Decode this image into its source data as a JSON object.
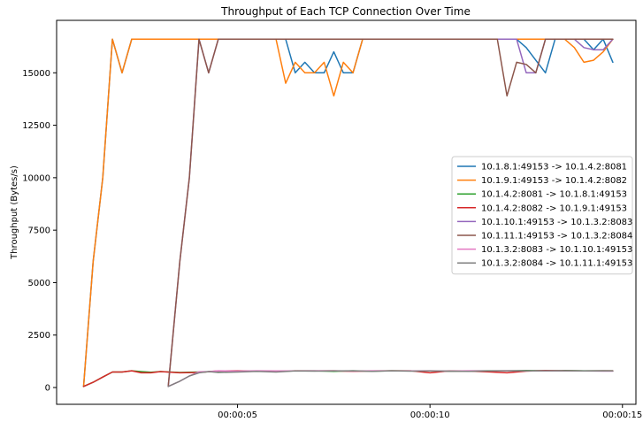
{
  "chart_data": {
    "type": "line",
    "title": "Throughput of Each TCP Connection Over Time",
    "xlabel": "",
    "ylabel": "Throughput (Bytes/s)",
    "xlim": [
      0.3,
      15.35
    ],
    "ylim": [
      -800,
      17500
    ],
    "x_ticks": [
      {
        "value": 5,
        "label": "00:00:05"
      },
      {
        "value": 10,
        "label": "00:00:10"
      },
      {
        "value": 15,
        "label": "00:00:15"
      }
    ],
    "y_ticks": [
      {
        "value": 0,
        "label": "0"
      },
      {
        "value": 2500,
        "label": "2500"
      },
      {
        "value": 5000,
        "label": "5000"
      },
      {
        "value": 7500,
        "label": "7500"
      },
      {
        "value": 10000,
        "label": "10000"
      },
      {
        "value": 12500,
        "label": "12500"
      },
      {
        "value": 15000,
        "label": "15000"
      }
    ],
    "grid": false,
    "legend_position": "center-right",
    "series": [
      {
        "name": "10.1.8.1:49153 -> 10.1.4.2:8081",
        "color": "#1f77b4",
        "x": [
          1.0,
          1.25,
          1.5,
          1.75,
          2.0,
          2.25,
          2.5,
          3.0,
          3.5,
          4.0,
          4.5,
          5.0,
          5.5,
          6.0,
          6.25,
          6.5,
          6.75,
          7.0,
          7.25,
          7.5,
          7.75,
          8.0,
          8.25,
          8.5,
          9.0,
          10.0,
          11.0,
          11.75,
          12.0,
          12.25,
          12.5,
          12.75,
          13.0,
          13.25,
          13.5,
          13.75,
          14.0,
          14.25,
          14.5,
          14.75
        ],
        "y": [
          50,
          6000,
          10000,
          16600,
          15000,
          16600,
          16600,
          16600,
          16600,
          16600,
          16600,
          16600,
          16600,
          16600,
          16600,
          15000,
          15500,
          15000,
          15000,
          16000,
          15000,
          15000,
          16600,
          16600,
          16600,
          16600,
          16600,
          16600,
          16600,
          16600,
          16200,
          15600,
          15000,
          16600,
          16600,
          16600,
          16600,
          16100,
          16600,
          15500
        ]
      },
      {
        "name": "10.1.9.1:49153 -> 10.1.4.2:8082",
        "color": "#ff7f0e",
        "x": [
          1.0,
          1.25,
          1.5,
          1.75,
          2.0,
          2.25,
          2.5,
          3.0,
          3.5,
          4.0,
          4.5,
          5.0,
          5.5,
          6.0,
          6.25,
          6.5,
          6.75,
          7.0,
          7.25,
          7.5,
          7.75,
          8.0,
          8.25,
          8.5,
          9.0,
          10.0,
          11.0,
          11.75,
          12.0,
          12.5,
          13.0,
          13.25,
          13.5,
          13.75,
          14.0,
          14.25,
          14.5,
          14.75
        ],
        "y": [
          50,
          6000,
          10000,
          16600,
          15000,
          16600,
          16600,
          16600,
          16600,
          16600,
          16600,
          16600,
          16600,
          16600,
          14500,
          15500,
          15000,
          15000,
          15500,
          13900,
          15500,
          15000,
          16600,
          16600,
          16600,
          16600,
          16600,
          16600,
          16600,
          16600,
          16600,
          16600,
          16600,
          16200,
          15500,
          15600,
          16000,
          16600
        ]
      },
      {
        "name": "10.1.4.2:8081 -> 10.1.8.1:49153",
        "color": "#2ca02c",
        "x": [
          1.0,
          1.25,
          1.5,
          1.75,
          2.0,
          2.25,
          2.5,
          2.75,
          3.0,
          3.5,
          4.0,
          4.5,
          5.0,
          5.5,
          6.0,
          6.5,
          7.0,
          7.5,
          8.0,
          8.5,
          9.0,
          9.5,
          10.0,
          10.5,
          11.0,
          11.5,
          12.0,
          12.5,
          13.0,
          13.5,
          14.0,
          14.5,
          14.75
        ],
        "y": [
          50,
          250,
          500,
          740,
          740,
          800,
          760,
          730,
          760,
          720,
          740,
          760,
          770,
          780,
          790,
          790,
          800,
          770,
          800,
          780,
          800,
          790,
          790,
          770,
          790,
          800,
          790,
          810,
          800,
          810,
          800,
          800,
          800
        ]
      },
      {
        "name": "10.1.4.2:8082 -> 10.1.9.1:49153",
        "color": "#d62728",
        "x": [
          1.0,
          1.25,
          1.5,
          1.75,
          2.0,
          2.25,
          2.5,
          2.75,
          3.0,
          3.5,
          4.0,
          4.5,
          5.0,
          5.5,
          6.0,
          6.5,
          7.0,
          7.5,
          8.0,
          8.5,
          9.0,
          9.5,
          10.0,
          10.5,
          11.0,
          11.5,
          12.0,
          12.5,
          13.0,
          13.5,
          14.0,
          14.5,
          14.75
        ],
        "y": [
          50,
          250,
          500,
          740,
          740,
          800,
          700,
          700,
          760,
          700,
          720,
          790,
          800,
          780,
          770,
          800,
          790,
          800,
          770,
          790,
          800,
          800,
          700,
          790,
          780,
          750,
          700,
          780,
          810,
          800,
          790,
          800,
          800
        ]
      },
      {
        "name": "10.1.10.1:49153 -> 10.1.3.2:8083",
        "color": "#9467bd",
        "x": [
          3.2,
          3.5,
          3.75,
          4.0,
          4.25,
          4.5,
          5.0,
          6.0,
          7.0,
          8.0,
          9.0,
          10.0,
          11.0,
          12.0,
          12.25,
          12.5,
          12.75,
          13.0,
          13.25,
          13.5,
          13.75,
          14.0,
          14.25,
          14.5,
          14.75
        ],
        "y": [
          50,
          6000,
          10000,
          16600,
          15000,
          16600,
          16600,
          16600,
          16600,
          16600,
          16600,
          16600,
          16600,
          16600,
          16600,
          15000,
          15000,
          16600,
          16600,
          16600,
          16600,
          16200,
          16100,
          16100,
          16600
        ]
      },
      {
        "name": "10.1.11.1:49153 -> 10.1.3.2:8084",
        "color": "#8c564b",
        "x": [
          3.2,
          3.5,
          3.75,
          4.0,
          4.25,
          4.5,
          5.0,
          6.0,
          7.0,
          8.0,
          9.0,
          10.0,
          11.0,
          11.75,
          12.0,
          12.25,
          12.5,
          12.75,
          13.0,
          13.25,
          13.5,
          13.75,
          14.0,
          14.25,
          14.5,
          14.75
        ],
        "y": [
          50,
          6000,
          10000,
          16600,
          15000,
          16600,
          16600,
          16600,
          16600,
          16600,
          16600,
          16600,
          16600,
          16600,
          13900,
          15500,
          15400,
          15000,
          16600,
          16600,
          16600,
          16600,
          16600,
          16600,
          16600,
          16600
        ]
      },
      {
        "name": "10.1.3.2:8083 -> 10.1.10.1:49153",
        "color": "#e377c2",
        "x": [
          3.2,
          3.5,
          3.75,
          4.0,
          4.25,
          4.5,
          5.0,
          5.5,
          6.0,
          6.5,
          7.0,
          7.5,
          8.0,
          8.5,
          9.0,
          9.5,
          10.0,
          10.5,
          11.0,
          11.5,
          12.0,
          12.5,
          13.0,
          13.5,
          14.0,
          14.5,
          14.75
        ],
        "y": [
          50,
          300,
          550,
          750,
          760,
          800,
          780,
          800,
          790,
          790,
          800,
          800,
          780,
          800,
          790,
          790,
          800,
          780,
          800,
          790,
          800,
          800,
          790,
          800,
          790,
          780,
          780
        ]
      },
      {
        "name": "10.1.3.2:8084 -> 10.1.11.1:49153",
        "color": "#7f7f7f",
        "x": [
          3.2,
          3.5,
          3.75,
          4.0,
          4.25,
          4.5,
          5.0,
          5.5,
          6.0,
          6.5,
          7.0,
          7.5,
          8.0,
          8.5,
          9.0,
          9.5,
          10.0,
          10.5,
          11.0,
          11.5,
          12.0,
          12.5,
          13.0,
          13.5,
          14.0,
          14.5,
          14.75
        ],
        "y": [
          50,
          300,
          550,
          700,
          760,
          720,
          740,
          770,
          740,
          790,
          780,
          790,
          800,
          770,
          800,
          780,
          790,
          780,
          770,
          790,
          800,
          790,
          800,
          800,
          790,
          800,
          790
        ]
      }
    ]
  }
}
